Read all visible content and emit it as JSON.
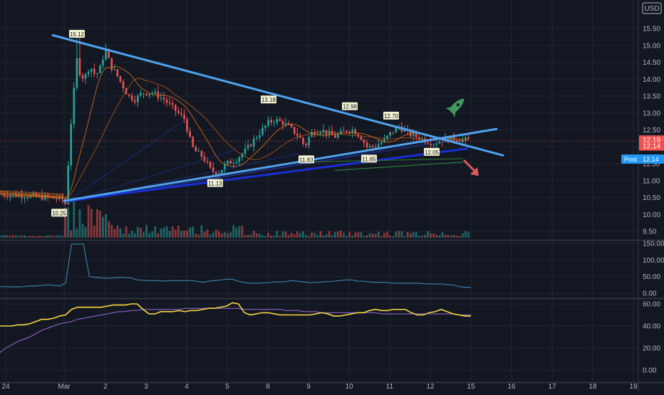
{
  "header": {
    "currency": "USD"
  },
  "price_badges": {
    "last_red": "12.19",
    "last_red2": "12.14",
    "post_label": "Post",
    "post_value": "12.14"
  },
  "colors": {
    "background": "#131722",
    "up": "#26a69a",
    "down": "#ef5350",
    "trendline": "#4fa3f0",
    "support_dark": "#1a2fd6",
    "ma_orange": "#d2691e",
    "rsi_yellow": "#f5d742",
    "rsi_ma": "#9c6ade",
    "panel_line": "#3a7ca5",
    "rocket": "#3f9a5c",
    "arrow": "#e05a5a"
  },
  "icons": {
    "rocket": "rocket-icon",
    "arrow": "down-right-arrow-icon"
  },
  "chart_data": [
    {
      "type": "candlestick",
      "title": "",
      "x_ticks": [
        "24",
        "Mar",
        "2",
        "3",
        "4",
        "5",
        "8",
        "9",
        "10",
        "11",
        "12",
        "15",
        "16",
        "17",
        "18",
        "19"
      ],
      "y_ticks": [
        9.5,
        10.0,
        10.5,
        11.0,
        11.5,
        12.0,
        12.5,
        13.0,
        13.5,
        14.0,
        14.5,
        15.0,
        15.5
      ],
      "ylim": [
        9.3,
        16.2
      ],
      "annotations": [
        "15.12",
        "10.25",
        "11.13",
        "13.18",
        "11.83",
        "12.98",
        "11.85",
        "12.70",
        "12.05"
      ],
      "annotation_values": [
        15.12,
        10.25,
        11.13,
        13.18,
        11.83,
        12.98,
        11.85,
        12.7,
        12.05
      ],
      "trendlines": [
        {
          "name": "upper",
          "x": [
            "Feb 28",
            "Mar 15"
          ],
          "y": [
            15.3,
            12.0
          ]
        },
        {
          "name": "lower",
          "x": [
            "Mar 1",
            "Mar 15"
          ],
          "y": [
            10.4,
            12.4
          ]
        }
      ],
      "grid": true
    },
    {
      "type": "line",
      "y_ticks": [
        0.0,
        50.0,
        100.0,
        150.0
      ],
      "ylim": [
        -6,
        160
      ],
      "values": [
        20,
        20,
        19,
        19,
        20,
        22,
        22,
        24,
        25,
        24,
        22,
        30,
        148,
        148,
        148,
        50,
        48,
        46,
        45,
        46,
        48,
        47,
        46,
        40,
        39,
        38,
        38,
        37,
        37,
        38,
        38,
        38,
        38,
        36,
        33,
        36,
        38,
        40,
        42,
        42,
        36,
        32,
        30,
        30,
        31,
        32,
        34,
        34,
        35,
        38,
        36,
        34,
        32,
        32,
        34,
        35,
        36,
        38,
        40,
        40,
        36,
        36,
        34,
        33,
        33,
        32,
        30,
        30,
        30,
        30,
        30,
        29,
        28,
        28,
        28,
        26,
        25,
        20,
        18,
        18
      ]
    },
    {
      "type": "line",
      "y_ticks": [
        0.0,
        20.0,
        40.0,
        60.0
      ],
      "ylim": [
        -7,
        65
      ],
      "series": [
        {
          "values": [
            40,
            40,
            40,
            41,
            41,
            42,
            44,
            46,
            46,
            47,
            49,
            50,
            55,
            57,
            57,
            57,
            57,
            57,
            58,
            59,
            59,
            59,
            60,
            60,
            55,
            51,
            51,
            53,
            53,
            53,
            54,
            53,
            54,
            54,
            55,
            56,
            56,
            57,
            58,
            61,
            60,
            52,
            50,
            51,
            52,
            52,
            51,
            50,
            50,
            50,
            50,
            50,
            50,
            51,
            52,
            51,
            49,
            49,
            50,
            51,
            52,
            52,
            54,
            55,
            54,
            54,
            55,
            55,
            55,
            52,
            50,
            50,
            52,
            53,
            55,
            53,
            51,
            50,
            49,
            49
          ]
        },
        {
          "values": [
            16,
            20,
            23,
            26,
            28,
            30,
            33,
            36,
            38,
            40,
            42,
            43,
            44,
            46,
            47,
            48,
            49,
            50,
            51,
            52,
            53,
            53,
            54,
            54,
            55,
            55,
            55,
            55,
            55,
            55,
            55,
            56,
            56,
            56,
            56,
            56,
            56,
            56,
            56,
            56,
            56,
            55,
            55,
            55,
            55,
            55,
            55,
            55,
            54,
            54,
            54,
            53,
            53,
            53,
            52,
            52,
            52,
            52,
            52,
            52,
            52,
            52,
            52,
            52,
            51,
            51,
            51,
            51,
            51,
            51,
            51,
            51,
            51,
            51,
            51,
            51,
            51,
            50,
            50,
            50
          ]
        }
      ]
    }
  ]
}
